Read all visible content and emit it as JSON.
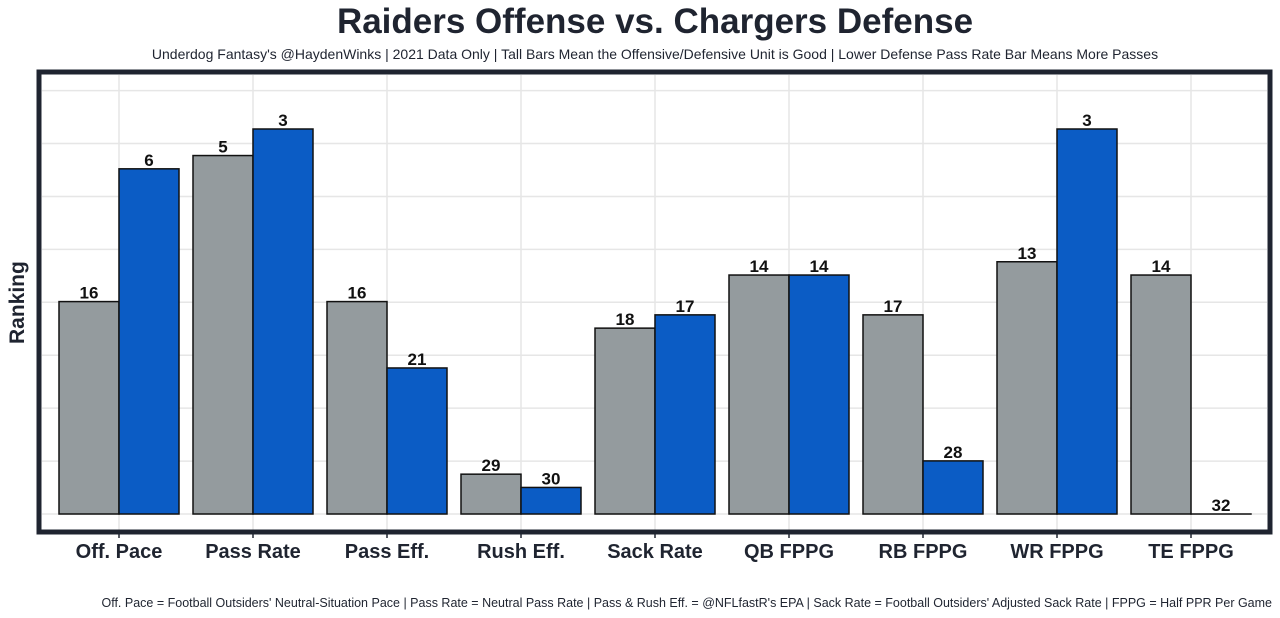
{
  "chart_data": {
    "type": "bar",
    "title": "Raiders Offense vs. Chargers Defense",
    "subtitle": "Underdog Fantasy's @HaydenWinks | 2021 Data Only | Tall Bars Mean the Offensive/Defensive Unit is Good | Lower Defense Pass Rate Bar Means More Passes",
    "caption": "Off. Pace = Football Outsiders' Neutral-Situation Pace | Pass Rate = Neutral Pass Rate | Pass & Rush Eff. = @NFLfastR's EPA | Sack Rate = Football Outsiders' Adjusted Sack Rate | FPPG = Half PPR Per Game",
    "xlabel": "",
    "ylabel": "Ranking",
    "categories": [
      "Off. Pace",
      "Pass Rate",
      "Pass Eff.",
      "Rush Eff.",
      "Sack Rate",
      "QB FPPG",
      "RB FPPG",
      "WR FPPG",
      "TE FPPG"
    ],
    "series": [
      {
        "name": "Raiders Offense",
        "color": "#949b9e",
        "values": [
          16,
          5,
          16,
          29,
          18,
          14,
          17,
          13,
          14
        ]
      },
      {
        "name": "Chargers Defense",
        "color": "#0b5cc5",
        "values": [
          6,
          3,
          21,
          30,
          17,
          14,
          28,
          3,
          32
        ]
      }
    ],
    "bar_height_rule": "height = 33 - ranking",
    "ylim": [
      0,
      32
    ],
    "grid": true,
    "legend": "none"
  }
}
